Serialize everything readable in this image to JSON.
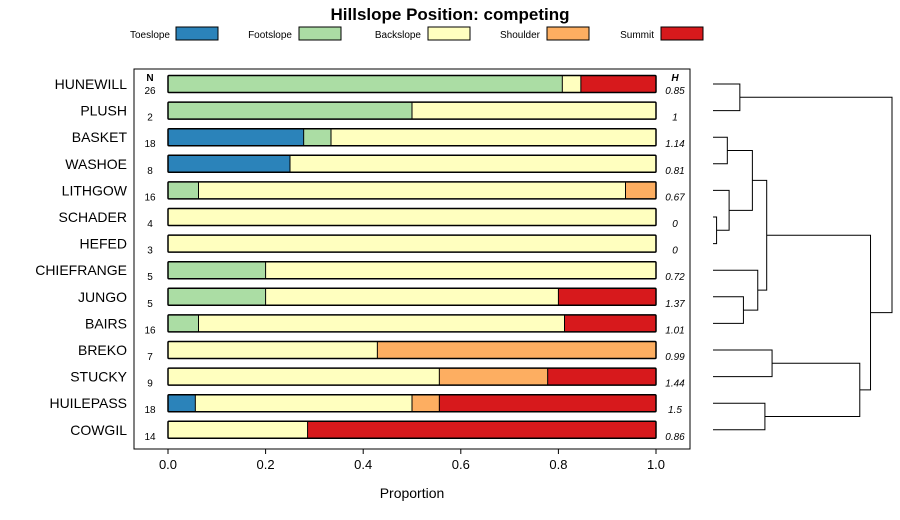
{
  "chart_data": {
    "type": "bar",
    "orientation": "horizontal",
    "stacked": true,
    "title": "Hillslope Position: competing",
    "xlabel": "Proportion",
    "xlim": [
      0,
      1
    ],
    "xticks": [
      "0.0",
      "0.2",
      "0.4",
      "0.6",
      "0.8",
      "1.0"
    ],
    "n_header": "N",
    "h_header": "H",
    "legend_position": "top",
    "categories": [
      "HUNEWILL",
      "PLUSH",
      "BASKET",
      "WASHOE",
      "LITHGOW",
      "SCHADER",
      "HEFED",
      "CHIEFRANGE",
      "JUNGO",
      "BAIRS",
      "BREKO",
      "STUCKY",
      "HUILEPASS",
      "COWGIL"
    ],
    "n_values": [
      "26",
      "2",
      "18",
      "8",
      "16",
      "4",
      "3",
      "5",
      "5",
      "16",
      "7",
      "9",
      "18",
      "14"
    ],
    "h_values": [
      "0.85",
      "1",
      "1.14",
      "0.81",
      "0.67",
      "0",
      "0",
      "0.72",
      "1.37",
      "1.01",
      "0.99",
      "1.44",
      "1.5",
      "0.86"
    ],
    "series": [
      {
        "name": "Toeslope",
        "color": "#2b83ba",
        "values": [
          0,
          0,
          0.278,
          0.25,
          0,
          0,
          0,
          0,
          0,
          0,
          0,
          0,
          0.056,
          0
        ]
      },
      {
        "name": "Footslope",
        "color": "#abdda4",
        "values": [
          0.808,
          0.5,
          0.056,
          0,
          0.0625,
          0,
          0,
          0.2,
          0.2,
          0.0625,
          0,
          0,
          0,
          0
        ]
      },
      {
        "name": "Backslope",
        "color": "#ffffbf",
        "values": [
          0.038,
          0.5,
          0.666,
          0.75,
          0.875,
          1,
          1,
          0.8,
          0.6,
          0.75,
          0.429,
          0.556,
          0.444,
          0.286
        ]
      },
      {
        "name": "Shoulder",
        "color": "#fdae61",
        "values": [
          0,
          0,
          0,
          0,
          0.0625,
          0,
          0,
          0,
          0,
          0,
          0.571,
          0.222,
          0.056,
          0
        ]
      },
      {
        "name": "Summit",
        "color": "#d7191c",
        "values": [
          0.154,
          0,
          0,
          0,
          0,
          0,
          0,
          0,
          0.2,
          0.1875,
          0,
          0.222,
          0.444,
          0.714
        ]
      }
    ],
    "dendrogram": {
      "leaves_in_order": [
        "HUNEWILL",
        "PLUSH",
        "BASKET",
        "WASHOE",
        "LITHGOW",
        "SCHADER",
        "HEFED",
        "CHIEFRANGE",
        "JUNGO",
        "BAIRS",
        "BREKO",
        "STUCKY",
        "HUILEPASS",
        "COWGIL"
      ],
      "merges": [
        {
          "a": "L0",
          "b": "L1",
          "height": 0.15
        },
        {
          "a": "L5",
          "b": "L6",
          "height": 0.02
        },
        {
          "a": "L4",
          "b": "m1",
          "height": 0.09
        },
        {
          "a": "L2",
          "b": "L3",
          "height": 0.08
        },
        {
          "a": "m3",
          "b": "m2",
          "height": 0.22
        },
        {
          "a": "L8",
          "b": "L9",
          "height": 0.17
        },
        {
          "a": "L7",
          "b": "m5",
          "height": 0.25
        },
        {
          "a": "m4",
          "b": "m6",
          "height": 0.3
        },
        {
          "a": "L10",
          "b": "L11",
          "height": 0.33
        },
        {
          "a": "L12",
          "b": "L13",
          "height": 0.29
        },
        {
          "a": "m8",
          "b": "m9",
          "height": 0.82
        },
        {
          "a": "m7",
          "b": "m10",
          "height": 0.88
        },
        {
          "a": "m0",
          "b": "m11",
          "height": 1.0
        }
      ]
    }
  }
}
